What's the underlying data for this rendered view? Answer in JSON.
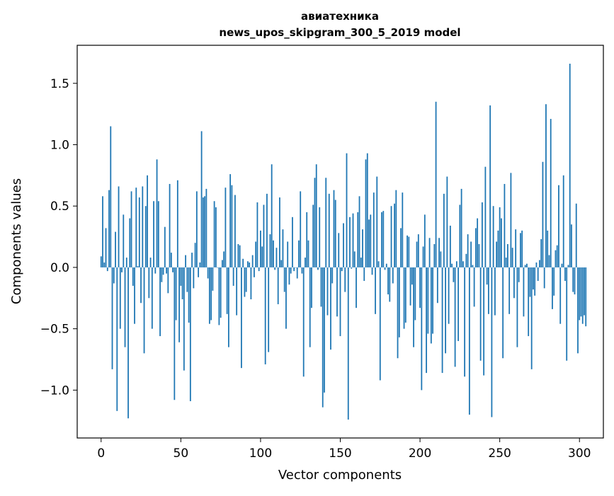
{
  "chart_data": {
    "type": "bar",
    "title": "авиатехника",
    "subtitle": "news_upos_skipgram_300_5_2019 model",
    "xlabel": "Vector components",
    "ylabel": "Components values",
    "xlim": [
      -15,
      315
    ],
    "ylim": [
      -1.39,
      1.81
    ],
    "xticks": [
      0,
      50,
      100,
      150,
      200,
      250,
      300
    ],
    "xtick_labels": [
      "0",
      "50",
      "100",
      "150",
      "200",
      "250",
      "300"
    ],
    "yticks": [
      -1.0,
      -0.5,
      0.0,
      0.5,
      1.0,
      1.5
    ],
    "ytick_labels": [
      "−1.0",
      "−0.5",
      "0.0",
      "0.5",
      "1.0",
      "1.5"
    ],
    "bar_color": "#1f77b4",
    "grid": false,
    "values": [
      0.09,
      0.58,
      0.04,
      0.32,
      -0.03,
      0.63,
      1.15,
      -0.83,
      -0.13,
      0.29,
      -1.17,
      0.66,
      -0.5,
      -0.04,
      0.43,
      -0.65,
      0.08,
      -1.23,
      0.4,
      0.62,
      -0.15,
      -0.46,
      0.65,
      0.01,
      0.57,
      -0.29,
      0.66,
      -0.7,
      0.5,
      0.75,
      -0.25,
      0.08,
      -0.5,
      0.54,
      -0.05,
      0.88,
      0.54,
      -0.56,
      -0.12,
      -0.06,
      0.33,
      -0.05,
      -0.21,
      0.68,
      0.12,
      -0.04,
      -1.08,
      -0.43,
      0.71,
      -0.61,
      -0.15,
      -0.26,
      -0.84,
      0.1,
      -0.2,
      -0.45,
      -1.09,
      0.12,
      -0.17,
      0.2,
      0.62,
      -0.08,
      0.04,
      1.11,
      0.57,
      0.58,
      0.64,
      -0.09,
      -0.46,
      -0.43,
      -0.19,
      0.54,
      0.49,
      0.0,
      -0.47,
      -0.41,
      0.06,
      0.13,
      0.65,
      -0.38,
      -0.65,
      0.76,
      0.67,
      -0.15,
      0.59,
      -0.39,
      0.19,
      0.18,
      -0.82,
      0.07,
      -0.24,
      -0.2,
      0.05,
      0.04,
      -0.26,
      0.1,
      -0.08,
      0.21,
      0.53,
      -0.03,
      0.3,
      0.17,
      0.51,
      -0.79,
      0.6,
      -0.69,
      0.27,
      0.84,
      0.22,
      -0.02,
      0.16,
      -0.3,
      0.57,
      0.06,
      0.31,
      -0.2,
      -0.5,
      0.21,
      -0.14,
      -0.05,
      0.41,
      -0.03,
      0.0,
      -0.09,
      0.22,
      0.62,
      -0.05,
      -0.89,
      0.08,
      0.45,
      0.22,
      -0.65,
      -0.33,
      0.51,
      0.73,
      0.84,
      -0.02,
      0.49,
      -0.32,
      -1.14,
      -1.02,
      0.73,
      -0.39,
      0.6,
      -0.67,
      -0.13,
      0.63,
      0.55,
      -0.4,
      0.28,
      -0.56,
      -0.03,
      0.36,
      -0.2,
      0.93,
      -1.24,
      0.41,
      -0.01,
      0.44,
      0.13,
      -0.33,
      0.45,
      0.58,
      0.08,
      0.31,
      -0.11,
      0.88,
      0.93,
      0.39,
      0.43,
      -0.06,
      0.61,
      -0.38,
      0.74,
      0.05,
      -0.92,
      0.45,
      0.46,
      -0.02,
      0.03,
      -0.22,
      -0.28,
      0.5,
      -0.13,
      0.52,
      0.63,
      -0.74,
      -0.57,
      0.32,
      0.61,
      -0.5,
      -0.45,
      0.26,
      0.25,
      -0.31,
      -0.14,
      -0.65,
      -0.43,
      0.21,
      0.27,
      -0.33,
      -1.0,
      0.17,
      0.43,
      -0.86,
      -0.54,
      0.24,
      -0.62,
      -0.54,
      0.19,
      1.35,
      -0.29,
      0.24,
      0.13,
      -0.86,
      0.6,
      -0.7,
      0.74,
      -0.46,
      0.34,
      0.03,
      -0.12,
      -0.81,
      0.05,
      -0.6,
      0.51,
      0.64,
      0.05,
      -0.89,
      0.11,
      0.27,
      -1.2,
      0.21,
      0.02,
      -0.32,
      0.32,
      0.4,
      0.19,
      -0.76,
      0.53,
      -0.88,
      0.82,
      -0.14,
      -0.38,
      1.32,
      -1.22,
      0.5,
      -0.39,
      0.21,
      0.3,
      0.49,
      0.4,
      -0.74,
      0.68,
      0.08,
      0.19,
      -0.38,
      0.77,
      0.16,
      -0.25,
      0.31,
      -0.65,
      -0.12,
      0.28,
      0.3,
      -0.4,
      0.02,
      0.03,
      -0.56,
      -0.24,
      -0.83,
      -0.18,
      -0.23,
      0.04,
      -0.11,
      0.06,
      0.23,
      0.86,
      -0.17,
      1.33,
      0.3,
      0.1,
      1.21,
      -0.34,
      -0.23,
      0.14,
      0.18,
      0.67,
      -0.46,
      0.03,
      0.75,
      -0.11,
      -0.76,
      0.02,
      1.66,
      0.35,
      -0.2,
      -0.22,
      0.52,
      -0.7,
      -0.43,
      -0.4,
      -0.46,
      -0.39,
      -0.48
    ]
  }
}
